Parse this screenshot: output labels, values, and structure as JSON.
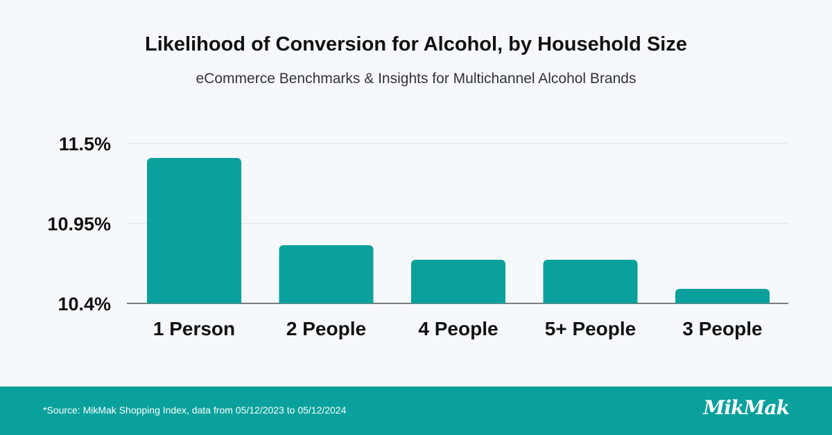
{
  "chart_data": {
    "type": "bar",
    "title": "Likelihood of Conversion for Alcohol, by Household Size",
    "subtitle": "eCommerce Benchmarks & Insights for Multichannel Alcohol Brands",
    "categories": [
      "1 Person",
      "2 People",
      "4 People",
      "5+ People",
      "3 People"
    ],
    "values": [
      11.4,
      10.8,
      10.7,
      10.7,
      10.5
    ],
    "ylim": [
      10.4,
      11.5
    ],
    "yticks": [
      10.4,
      10.95,
      11.5
    ],
    "ytick_labels": [
      "10.4%",
      "10.95%",
      "11.5%"
    ],
    "xlabel": "",
    "ylabel": "",
    "grid": true,
    "bar_color": "#0aa19c"
  },
  "footer": {
    "source": "*Source: MikMak Shopping Index, data from 05/12/2023 to 05/12/2024",
    "logo_text": "MikMak",
    "background": "#0aa19c"
  }
}
